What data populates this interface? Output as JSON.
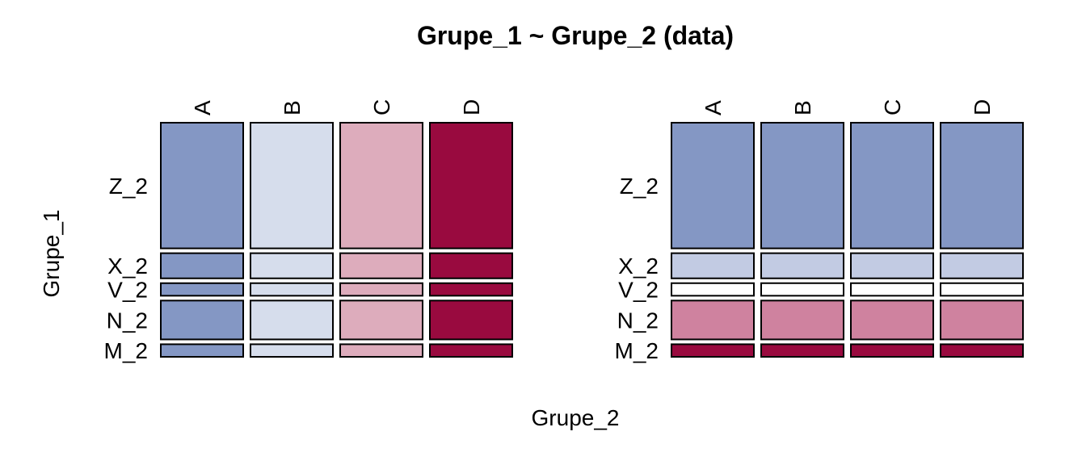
{
  "chart_data": {
    "type": "mosaic",
    "title": "Grupe_1 ~ Grupe_2 (data)",
    "xlabel": "Grupe_2",
    "ylabel": "Grupe_1",
    "x_categories": [
      "A",
      "B",
      "C",
      "D"
    ],
    "y_categories": [
      "Z_2",
      "X_2",
      "V_2",
      "N_2",
      "M_2"
    ],
    "row_proportions": [
      0.55,
      0.11,
      0.055,
      0.17,
      0.055
    ],
    "column_proportions": [
      0.25,
      0.25,
      0.25,
      0.25
    ],
    "panels": [
      {
        "cell_colors": [
          [
            "#8497c4",
            "#d6ddec",
            "#ddacbc",
            "#990a3f"
          ],
          [
            "#8497c4",
            "#d6ddec",
            "#ddacbc",
            "#990a3f"
          ],
          [
            "#8497c4",
            "#d6ddec",
            "#ddacbc",
            "#990a3f"
          ],
          [
            "#8497c4",
            "#d6ddec",
            "#ddacbc",
            "#990a3f"
          ],
          [
            "#8497c4",
            "#d6ddec",
            "#ddacbc",
            "#990a3f"
          ]
        ]
      },
      {
        "cell_colors": [
          [
            "#8497c4",
            "#8497c4",
            "#8497c4",
            "#8497c4"
          ],
          [
            "#c2cbe3",
            "#c2cbe3",
            "#c2cbe3",
            "#c2cbe3"
          ],
          [
            "#ffffff",
            "#ffffff",
            "#ffffff",
            "#ffffff"
          ],
          [
            "#cf829f",
            "#cf829f",
            "#cf829f",
            "#cf829f"
          ],
          [
            "#990a3f",
            "#990a3f",
            "#990a3f",
            "#990a3f"
          ]
        ]
      }
    ]
  }
}
